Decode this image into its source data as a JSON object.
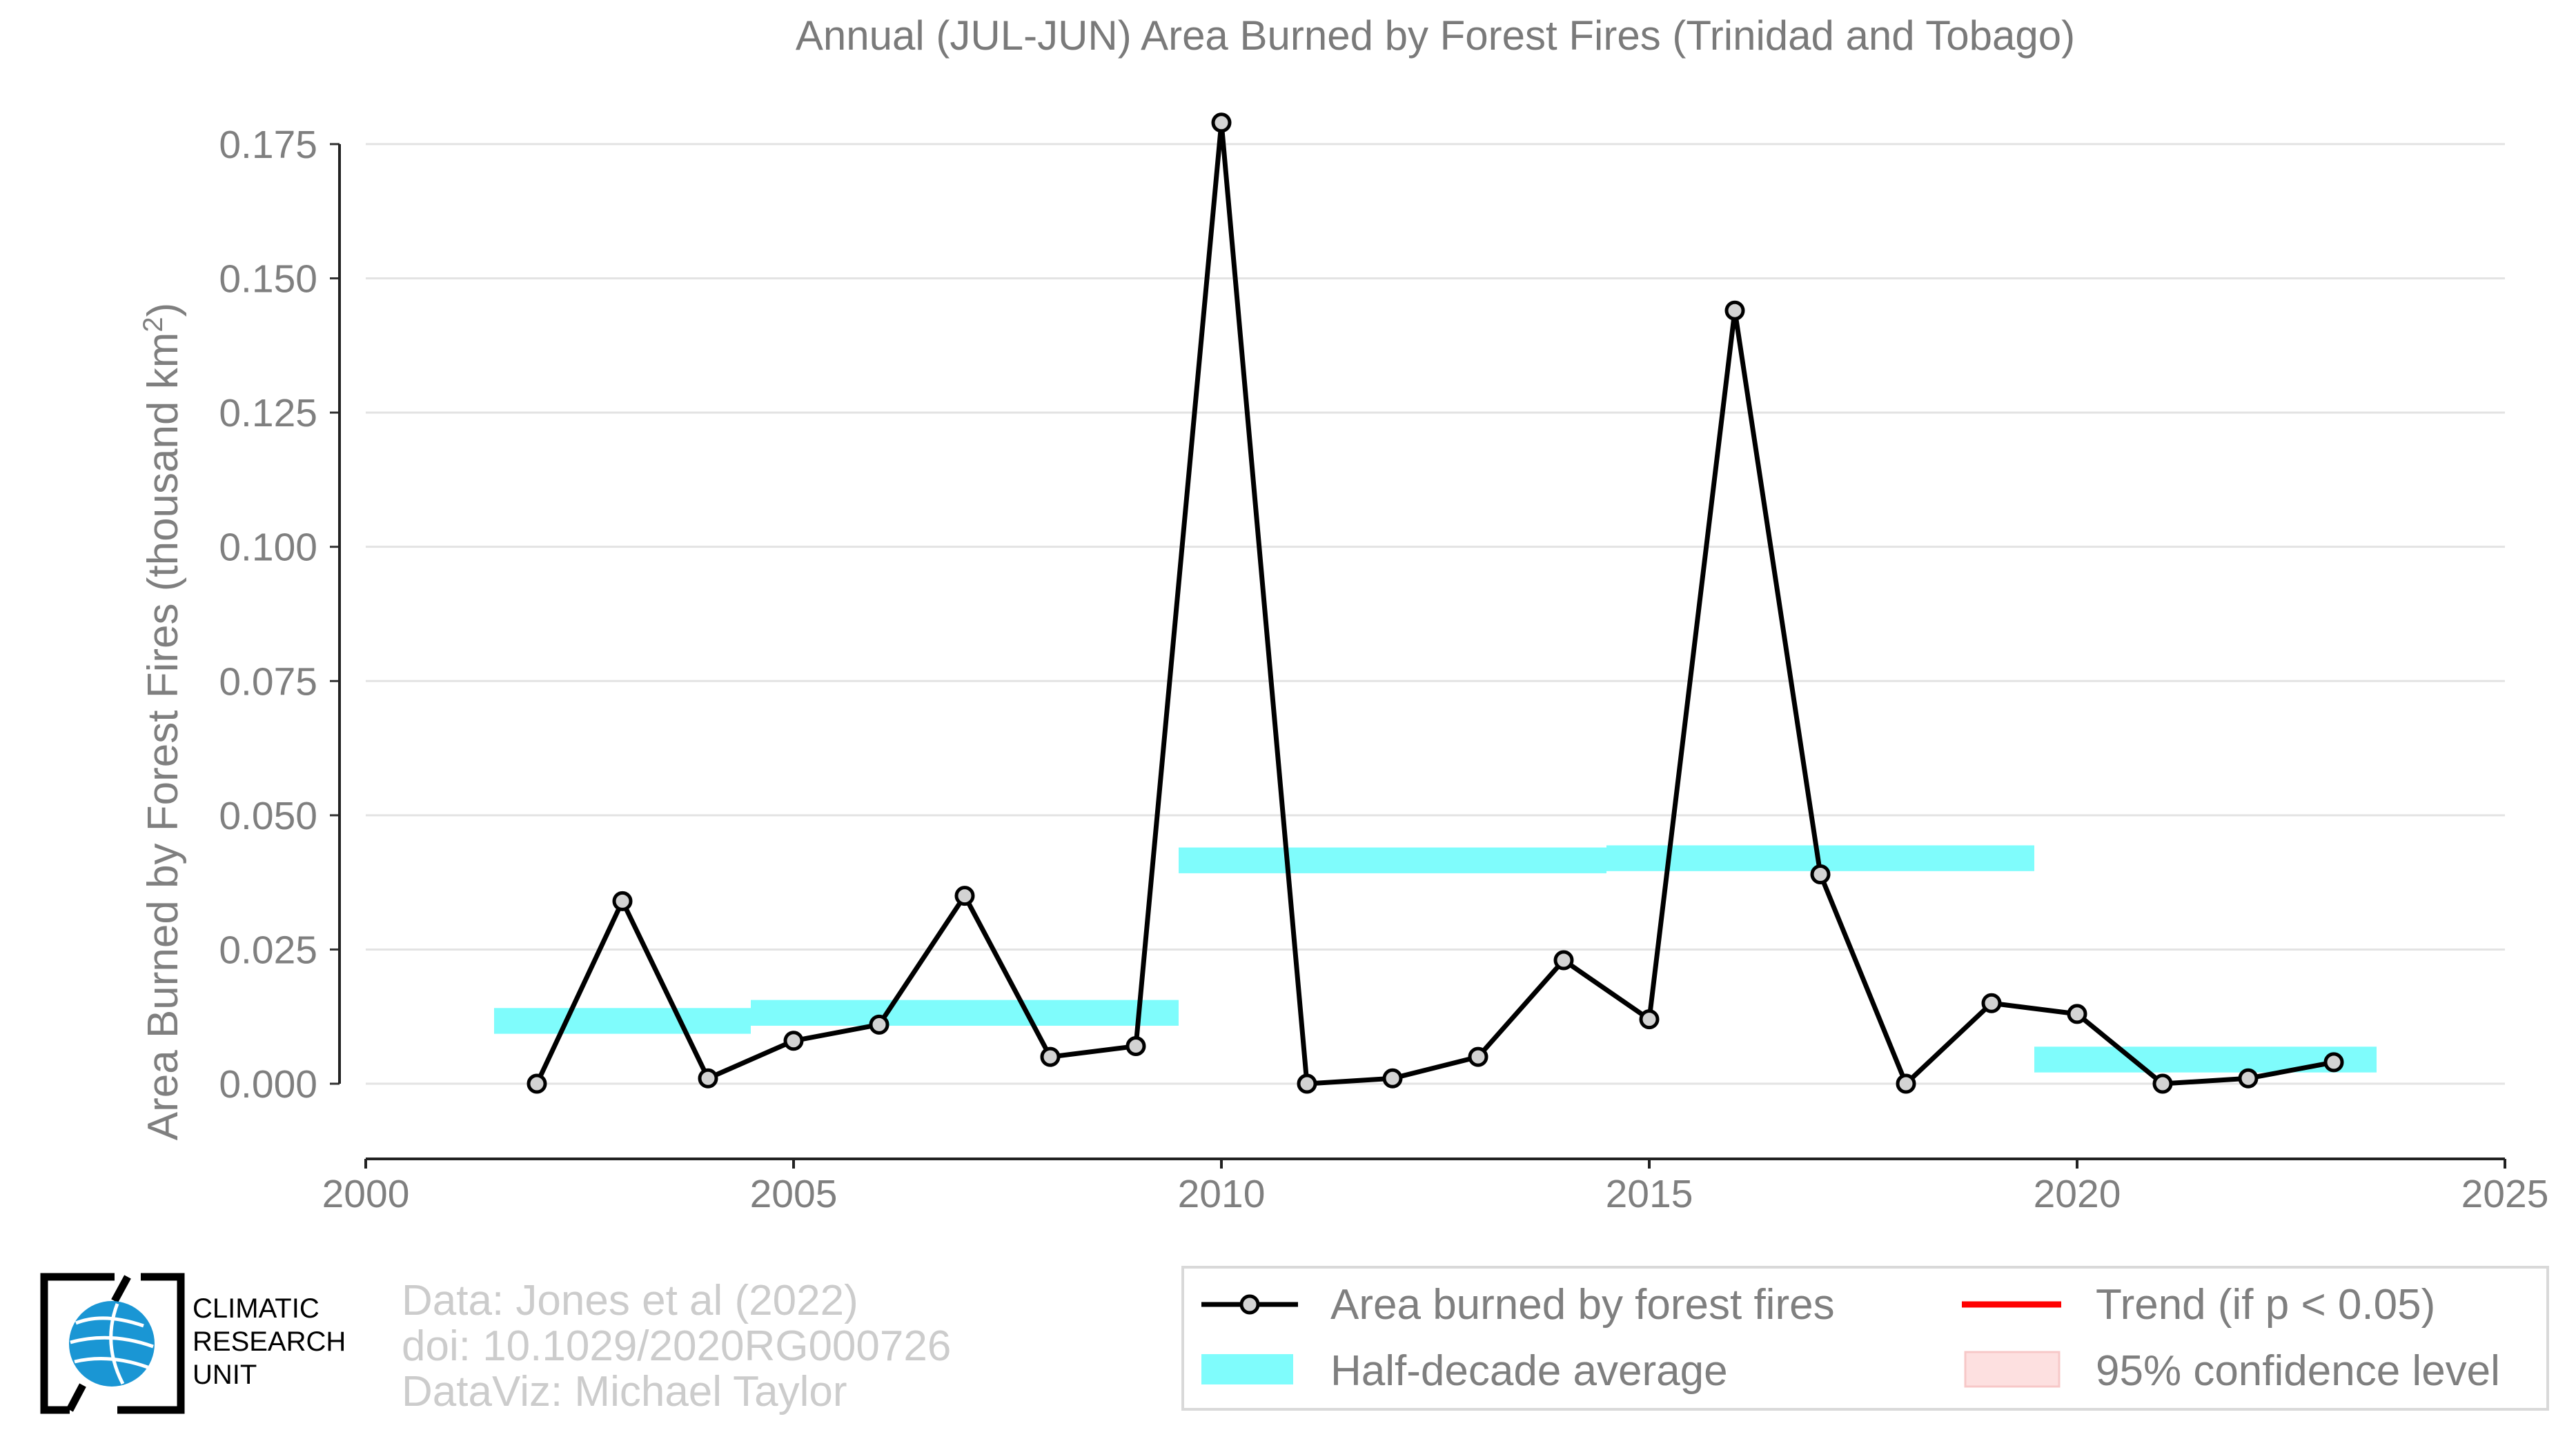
{
  "chart_data": {
    "type": "line",
    "title": "Annual (JUL-JUN) Area Burned by Forest Fires (Trinidad and Tobago)",
    "ylabel_main": "Area Burned by Forest Fires (thousand km",
    "ylabel_sup": "2",
    "ylabel_close": ")",
    "xlabel": "",
    "xlim": [
      2000,
      2025
    ],
    "ylim": [
      -0.014,
      0.18
    ],
    "x_ticks": [
      "2000",
      "2005",
      "2010",
      "2015",
      "2020",
      "2025"
    ],
    "y_ticks": [
      "0.000",
      "0.025",
      "0.050",
      "0.075",
      "0.100",
      "0.125",
      "0.150",
      "0.175"
    ],
    "grid": true,
    "series": [
      {
        "name": "Area burned by forest fires",
        "color": "#000000",
        "marker_fill": "#d3d3d3",
        "x": [
          2002,
          2003,
          2004,
          2005,
          2006,
          2007,
          2008,
          2009,
          2010,
          2011,
          2012,
          2013,
          2014,
          2015,
          2016,
          2017,
          2018,
          2019,
          2020,
          2021,
          2022,
          2023
        ],
        "y": [
          0.0,
          0.034,
          0.001,
          0.008,
          0.011,
          0.035,
          0.005,
          0.007,
          0.179,
          0.0,
          0.001,
          0.005,
          0.023,
          0.012,
          0.144,
          0.039,
          0.0,
          0.015,
          0.013,
          0.0,
          0.001,
          0.004
        ]
      },
      {
        "name": "Half-decade average",
        "color": "#7ffcfc",
        "segments": [
          {
            "x_start": 2001.5,
            "x_end": 2004.5,
            "y": 0.0117
          },
          {
            "x_start": 2004.5,
            "x_end": 2009.5,
            "y": 0.0132
          },
          {
            "x_start": 2009.5,
            "x_end": 2014.5,
            "y": 0.0416
          },
          {
            "x_start": 2014.5,
            "x_end": 2019.5,
            "y": 0.042
          },
          {
            "x_start": 2019.5,
            "x_end": 2023.5,
            "y": 0.0045
          }
        ]
      }
    ],
    "legend": {
      "placement": "bottom-right",
      "entries": [
        {
          "label": "Area burned by forest fires",
          "kind": "line-marker",
          "color": "#000000"
        },
        {
          "label": "Trend (if p < 0.05)",
          "kind": "line",
          "color": "#ff0000"
        },
        {
          "label": "Half-decade average",
          "kind": "band",
          "color": "#7ffcfc"
        },
        {
          "label": "95% confidence level",
          "kind": "fill",
          "color": "#fde0e0"
        }
      ]
    }
  },
  "credits": [
    "Data: Jones et al (2022)",
    "doi: 10.1029/2020RG000726",
    "DataViz: Michael Taylor"
  ],
  "logo": {
    "lines": [
      "CLIMATIC",
      "RESEARCH",
      "UNIT"
    ],
    "globe_color": "#1a96d4",
    "frame_color": "#000000"
  }
}
